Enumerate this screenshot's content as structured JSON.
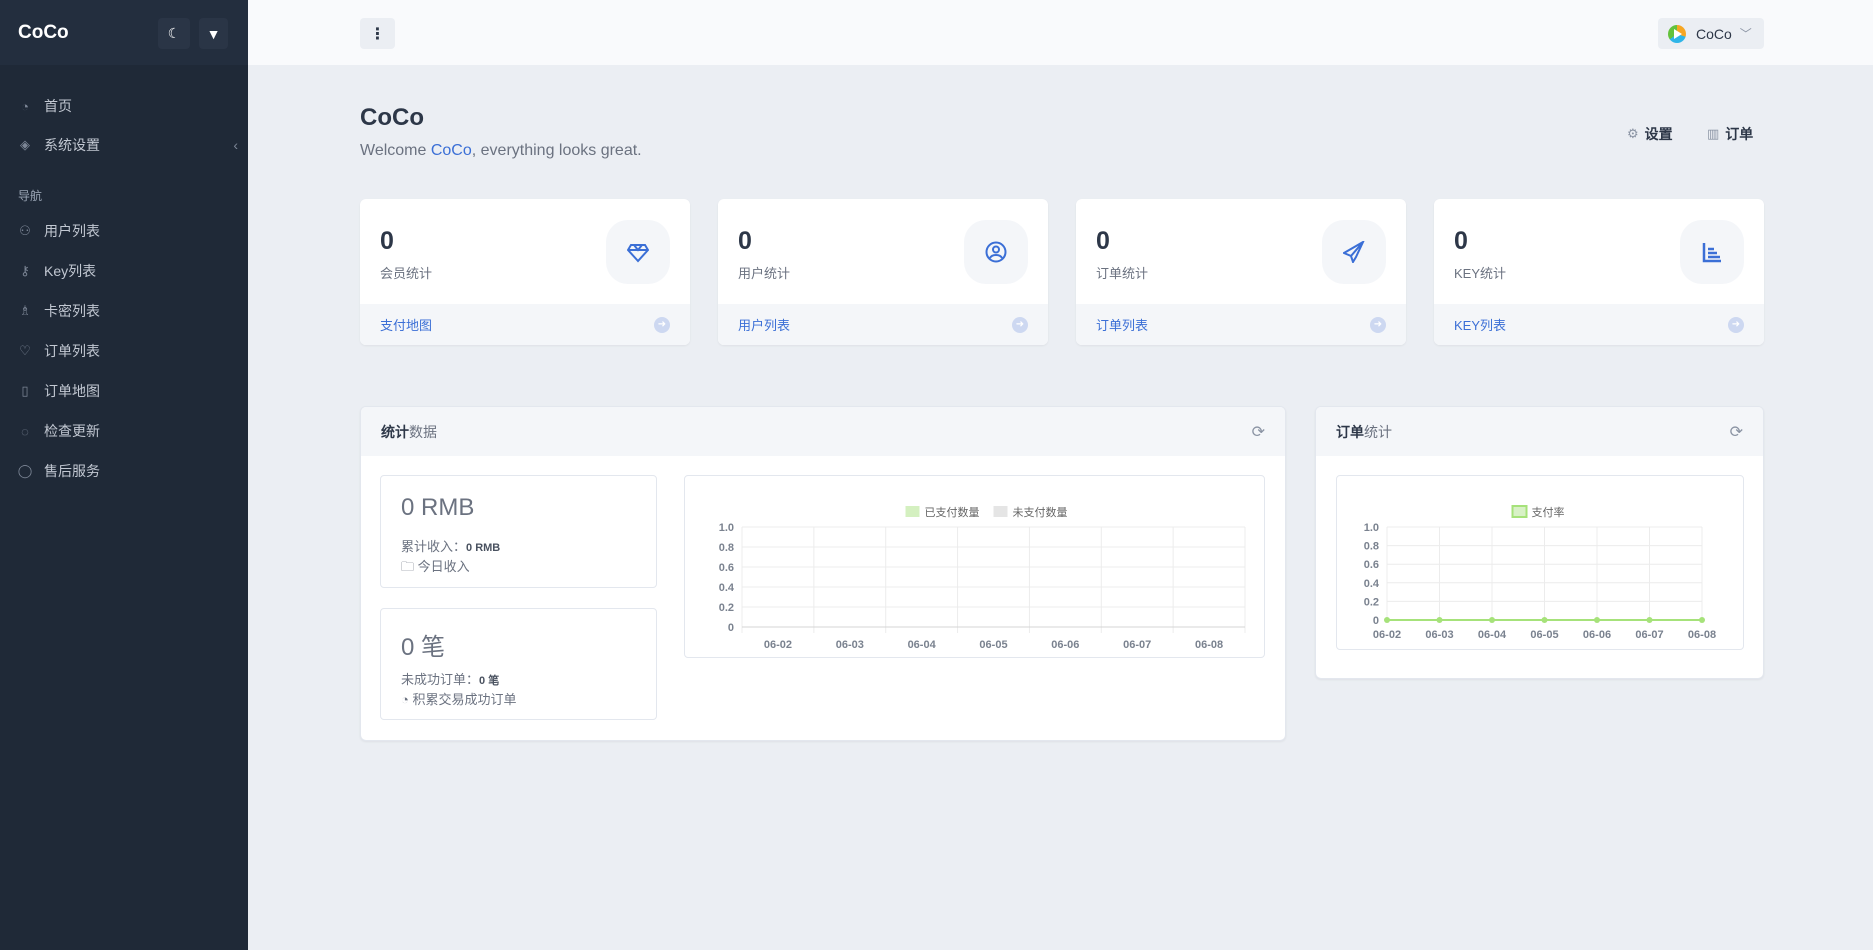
{
  "sidebar": {
    "brand": "CoCo",
    "items": [
      {
        "label": "首页",
        "icon": "dashboard-icon"
      },
      {
        "label": "系统设置",
        "icon": "layers-icon"
      }
    ],
    "section": "导航",
    "nav": [
      {
        "label": "用户列表",
        "icon": "users-icon"
      },
      {
        "label": "Key列表",
        "icon": "key-icon"
      },
      {
        "label": "卡密列表",
        "icon": "chess-icon"
      },
      {
        "label": "订单列表",
        "icon": "heart-icon"
      },
      {
        "label": "订单地图",
        "icon": "map-icon"
      },
      {
        "label": "检查更新",
        "icon": "refresh-icon"
      },
      {
        "label": "售后服务",
        "icon": "chat-icon"
      }
    ]
  },
  "topbar": {
    "user": "CoCo"
  },
  "page": {
    "title": "CoCo",
    "welcome_pre": "Welcome ",
    "welcome_name": "CoCo",
    "welcome_post": ", everything looks great.",
    "links": [
      "设置",
      "订单"
    ]
  },
  "cards": [
    {
      "value": "0",
      "label": "会员统计",
      "link": "支付地图",
      "icon": "diamond-icon"
    },
    {
      "value": "0",
      "label": "用户统计",
      "link": "用户列表",
      "icon": "user-circle-icon"
    },
    {
      "value": "0",
      "label": "订单统计",
      "link": "订单列表",
      "icon": "paper-plane-icon"
    },
    {
      "value": "0",
      "label": "KEY统计",
      "link": "KEY列表",
      "icon": "bar-chart-icon"
    }
  ],
  "stats": {
    "title_bold": "统计",
    "title_rest": "数据",
    "revenue": {
      "value": "0 RMB",
      "total_label": "累计收入：",
      "total_value": "0 RMB",
      "today": "今日收入"
    },
    "orders": {
      "value": "0 笔",
      "failed_label": "未成功订单：",
      "failed_value": "0 笔",
      "desc": "积累交易成功订单"
    }
  },
  "orders_panel": {
    "title_bold": "订单",
    "title_rest": "统计"
  },
  "colors": {
    "accent": "#3b6fd6",
    "sidebar": "#1f2937",
    "paid": "#d4f0c0",
    "unpaid": "#e5e5e5",
    "rate": "#a6e27a"
  },
  "chart_data": [
    {
      "type": "bar",
      "categories": [
        "06-02",
        "06-03",
        "06-04",
        "06-05",
        "06-06",
        "06-07",
        "06-08"
      ],
      "series": [
        {
          "name": "已支付数量",
          "values": [
            0,
            0,
            0,
            0,
            0,
            0,
            0
          ]
        },
        {
          "name": "未支付数量",
          "values": [
            0,
            0,
            0,
            0,
            0,
            0,
            0
          ]
        }
      ],
      "ylim": [
        0,
        1
      ],
      "yticks": [
        "0",
        "0.2",
        "0.4",
        "0.6",
        "0.8",
        "1.0"
      ],
      "legend": "top",
      "grid": true
    },
    {
      "type": "line",
      "categories": [
        "06-02",
        "06-03",
        "06-04",
        "06-05",
        "06-06",
        "06-07",
        "06-08"
      ],
      "series": [
        {
          "name": "支付率",
          "values": [
            0,
            0,
            0,
            0,
            0,
            0,
            0
          ]
        }
      ],
      "ylim": [
        0,
        1
      ],
      "yticks": [
        "0",
        "0.2",
        "0.4",
        "0.6",
        "0.8",
        "1.0"
      ],
      "legend": "top",
      "grid": true
    }
  ]
}
